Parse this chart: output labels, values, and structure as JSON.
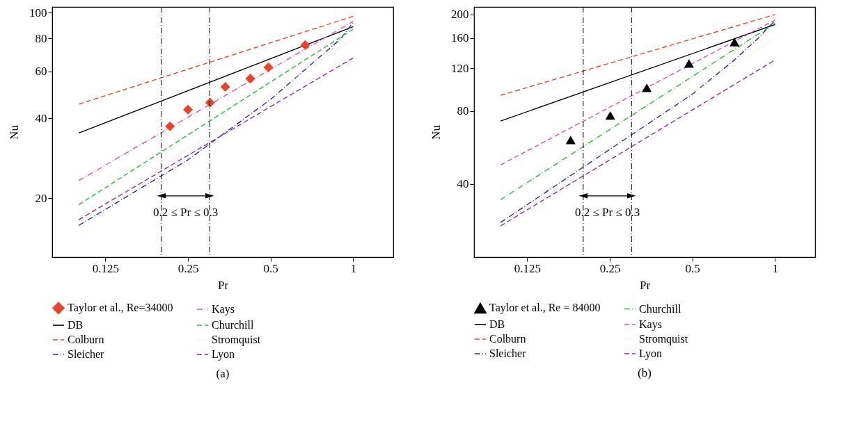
{
  "chart_data": [
    {
      "type": "line",
      "xlabel": "Pr",
      "ylabel": "Nu",
      "log": "xy",
      "xlim": [
        0.08,
        1.4
      ],
      "ylim": [
        12,
        105
      ],
      "xticks": [
        0.125,
        0.25,
        0.5,
        1
      ],
      "yticks": [
        20,
        40,
        60,
        80,
        100
      ],
      "grid": false,
      "legend": "bottom",
      "series": [
        {
          "name": "Taylor et al., Re=34000",
          "type": "scatter",
          "marker": "diamond",
          "color": "#e8442a",
          "x": [
            0.215,
            0.25,
            0.301,
            0.342,
            0.422,
            0.491,
            0.669
          ],
          "values": [
            37.3,
            43.1,
            45.8,
            52.5,
            56.4,
            62.2,
            75.5
          ]
        },
        {
          "name": "DB",
          "color": "#000000",
          "line_style": "solid",
          "x": [
            0.1,
            1
          ],
          "values": [
            35.2,
            88.5
          ]
        },
        {
          "name": "Colburn",
          "color": "#ee4422",
          "line_style": "dashed",
          "x": [
            0.1,
            1
          ],
          "values": [
            45.2,
            96.8
          ]
        },
        {
          "name": "Sleicher",
          "color": "#2b2b9e",
          "line_style": "dashdot",
          "x": [
            0.1,
            0.25,
            0.5,
            0.9,
            1
          ],
          "values": [
            15.8,
            27.9,
            47.1,
            79.6,
            92
          ]
        },
        {
          "name": "Kays",
          "color": "#cc55bb",
          "line_style": "dashdot",
          "x": [
            0.1,
            1
          ],
          "values": [
            23.3,
            92.7
          ]
        },
        {
          "name": "Churchill",
          "color": "#22bb33",
          "line_style": "dashed",
          "x": [
            0.1,
            1
          ],
          "values": [
            18.9,
            86.6
          ]
        },
        {
          "name": "Stromquist",
          "color": "#e6dfbf",
          "line_style": "dotted",
          "x": [
            0.1,
            1
          ],
          "values": [
            16.3,
            79.1
          ]
        },
        {
          "name": "Lyon",
          "color": "#8e2a9e",
          "line_style": "dashed",
          "x": [
            0.1,
            1
          ],
          "values": [
            16.6,
            67.5
          ]
        }
      ],
      "ref_lines": [
        {
          "axis": "x",
          "value": 0.2,
          "color": "#000000",
          "line_style": "dashdot"
        },
        {
          "axis": "x",
          "value": 0.3,
          "color": "#000000",
          "line_style": "dashdot"
        }
      ],
      "annotations": [
        "0.2 ≤ Pr ≤ 0.3",
        "(a)"
      ]
    },
    {
      "type": "line",
      "xlabel": "Pr",
      "ylabel": "Nu",
      "log": "xy",
      "xlim": [
        0.08,
        1.4
      ],
      "ylim": [
        20,
        215
      ],
      "xticks": [
        0.125,
        0.25,
        0.5,
        1
      ],
      "yticks": [
        40,
        80,
        120,
        160,
        200
      ],
      "grid": false,
      "legend": "bottom",
      "series": [
        {
          "name": "Taylor et al., Re = 84000",
          "type": "scatter",
          "marker": "triangle",
          "color": "#000000",
          "x": [
            0.18,
            0.251,
            0.341,
            0.486,
            0.712
          ],
          "values": [
            60.8,
            76.8,
            99.7,
            125.6,
            154
          ]
        },
        {
          "name": "DB",
          "color": "#000000",
          "line_style": "solid",
          "x": [
            0.1,
            1
          ],
          "values": [
            72.8,
            182
          ]
        },
        {
          "name": "Colburn",
          "color": "#ee4422",
          "line_style": "dashed",
          "x": [
            0.1,
            1
          ],
          "values": [
            92.9,
            200
          ]
        },
        {
          "name": "Sleicher",
          "color": "#2b2b9e",
          "line_style": "dashdot",
          "x": [
            0.1,
            0.5,
            0.7,
            0.87,
            1
          ],
          "values": [
            27.8,
            94,
            128,
            160,
            189
          ]
        },
        {
          "name": "Churchill",
          "color": "#22bb33",
          "line_style": "dashdot",
          "x": [
            0.1,
            1
          ],
          "values": [
            34.5,
            184
          ]
        },
        {
          "name": "Kays",
          "color": "#cc55bb",
          "line_style": "dashed",
          "x": [
            0.1,
            1
          ],
          "values": [
            48,
            190
          ]
        },
        {
          "name": "Stromquist",
          "color": "#e6dfbf",
          "line_style": "dotted",
          "x": [
            0.1,
            1
          ],
          "values": [
            28.2,
            160
          ]
        },
        {
          "name": "Lyon",
          "color": "#8e2a9e",
          "line_style": "dashed",
          "x": [
            0.1,
            1
          ],
          "values": [
            26.9,
            130
          ]
        }
      ],
      "ref_lines": [
        {
          "axis": "x",
          "value": 0.2,
          "color": "#000000",
          "line_style": "dashdot"
        },
        {
          "axis": "x",
          "value": 0.3,
          "color": "#000000",
          "line_style": "dashdot"
        }
      ],
      "annotations": [
        "0.2 ≤ Pr ≤ 0.3",
        "(b)"
      ]
    }
  ]
}
